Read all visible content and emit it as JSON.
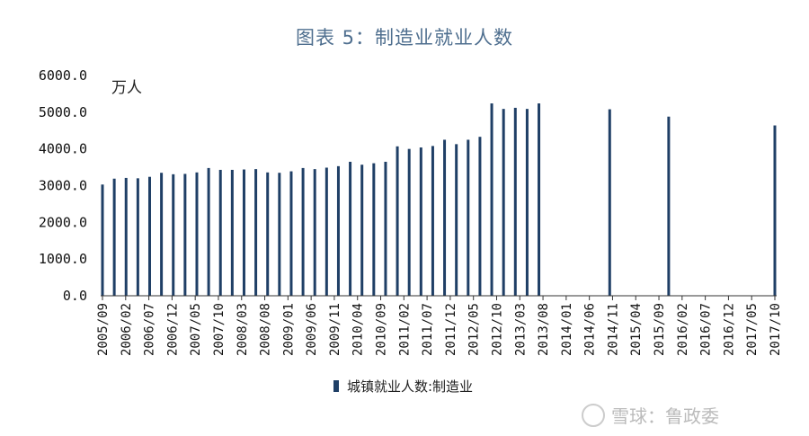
{
  "title": "图表 5：制造业就业人数",
  "chart_data": {
    "type": "bar",
    "unit_label": "万人",
    "ylim": [
      0,
      6000
    ],
    "yticks": [
      "0.0",
      "1000.0",
      "2000.0",
      "3000.0",
      "4000.0",
      "5000.0",
      "6000.0"
    ],
    "xtick_labels": [
      "2005/09",
      "2006/02",
      "2006/07",
      "2006/12",
      "2007/05",
      "2007/10",
      "2008/03",
      "2008/08",
      "2009/01",
      "2009/06",
      "2009/11",
      "2010/04",
      "2010/09",
      "2011/02",
      "2011/07",
      "2011/12",
      "2012/05",
      "2012/10",
      "2013/03",
      "2013/08",
      "2014/01",
      "2014/06",
      "2014/11",
      "2015/04",
      "2015/09",
      "2016/02",
      "2016/07",
      "2016/12",
      "2017/05",
      "2017/10"
    ],
    "series": [
      {
        "name": "城镇就业人数:制造业",
        "color": "#1f3f66",
        "values": [
          3030,
          null,
          3190,
          null,
          3210,
          null,
          3200,
          null,
          3240,
          null,
          3350,
          null,
          3310,
          null,
          3320,
          null,
          3360,
          null,
          3480,
          null,
          3430,
          null,
          3430,
          null,
          3440,
          null,
          3450,
          null,
          3360,
          null,
          3350,
          null,
          3390,
          null,
          3480,
          null,
          3450,
          null,
          3490,
          null,
          3530,
          null,
          3650,
          null,
          3570,
          null,
          3610,
          null,
          3650,
          null,
          4070,
          null,
          4000,
          null,
          4040,
          null,
          4080,
          null,
          4250,
          null,
          4130,
          null,
          4250,
          null,
          4330,
          null,
          5240,
          null,
          5090,
          null,
          5120,
          null,
          5090,
          null,
          5240,
          null,
          null,
          null,
          null,
          null,
          null,
          null,
          null,
          null,
          null,
          null,
          5080,
          null,
          null,
          null,
          null,
          null,
          null,
          null,
          null,
          null,
          4880,
          null,
          null,
          null,
          null,
          null,
          null,
          null,
          null,
          null,
          null,
          null,
          null,
          null,
          null,
          null,
          null,
          null,
          4640
        ]
      }
    ],
    "watermark": "雪球：鲁政委"
  }
}
